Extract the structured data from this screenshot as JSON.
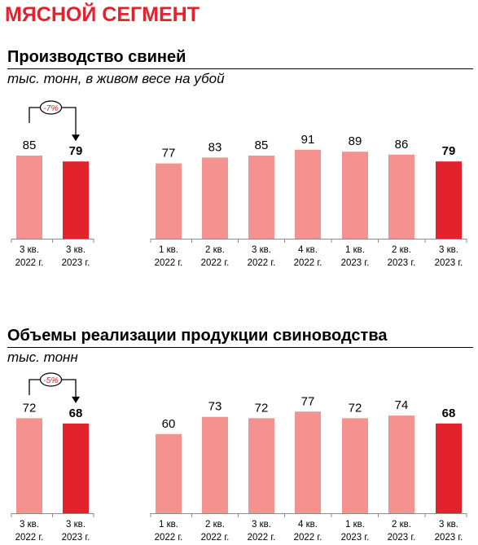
{
  "header": {
    "segment_title": "МЯСНОЙ СЕГМЕНТ"
  },
  "colors": {
    "accent": "#e2232e",
    "bar_light": "#f3928f",
    "bar_dark": "#e2232e"
  },
  "chart_data": [
    {
      "type": "bar",
      "title": "Производство свиней",
      "subtitle": "тыс. тонн, в живом весе на убой",
      "comparison": {
        "categories": [
          [
            "3 кв.",
            "2022 г."
          ],
          [
            "3 кв.",
            "2023 г."
          ]
        ],
        "values": [
          85,
          79
        ],
        "change_label": "-7%"
      },
      "quarterly": {
        "categories": [
          [
            "1 кв.",
            "2022 г."
          ],
          [
            "2 кв.",
            "2022 г."
          ],
          [
            "3 кв.",
            "2022 г."
          ],
          [
            "4 кв.",
            "2022 г."
          ],
          [
            "1 кв.",
            "2023 г."
          ],
          [
            "2 кв.",
            "2023 г."
          ],
          [
            "3 кв.",
            "2023 г."
          ]
        ],
        "values": [
          77,
          83,
          85,
          91,
          89,
          86,
          79
        ]
      },
      "ylim": [
        0,
        100
      ],
      "grid": false,
      "legend": "none"
    },
    {
      "type": "bar",
      "title": "Объемы реализации продукции свиноводства",
      "subtitle": "тыс. тонн",
      "comparison": {
        "categories": [
          [
            "3 кв.",
            "2022 г."
          ],
          [
            "3 кв.",
            "2023 г."
          ]
        ],
        "values": [
          72,
          68
        ],
        "change_label": "-5%"
      },
      "quarterly": {
        "categories": [
          [
            "1 кв.",
            "2022 г."
          ],
          [
            "2 кв.",
            "2022 г."
          ],
          [
            "3 кв.",
            "2022 г."
          ],
          [
            "4 кв.",
            "2022 г."
          ],
          [
            "1 кв.",
            "2023 г."
          ],
          [
            "2 кв.",
            "2023 г."
          ],
          [
            "3 кв.",
            "2023 г."
          ]
        ],
        "values": [
          60,
          73,
          72,
          77,
          72,
          74,
          68
        ]
      },
      "ylim": [
        0,
        100
      ],
      "grid": false,
      "legend": "none"
    }
  ]
}
